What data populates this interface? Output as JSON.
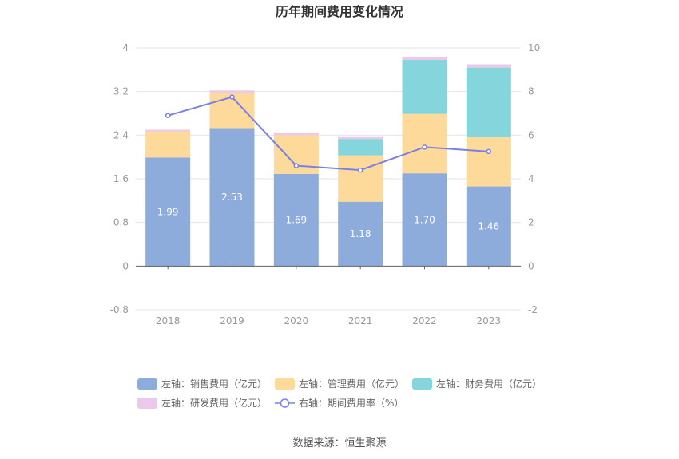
{
  "chart_data": {
    "type": "bar",
    "title": "历年期间费用变化情况",
    "categories": [
      "2018",
      "2019",
      "2020",
      "2021",
      "2022",
      "2023"
    ],
    "left_axis": {
      "ylim": [
        -0.8,
        4
      ],
      "ticks": [
        "4",
        "3.2",
        "2.4",
        "1.6",
        "0.8",
        "0",
        "-0.8"
      ]
    },
    "right_axis": {
      "ylim": [
        -2,
        10
      ],
      "ticks": [
        "10",
        "8",
        "6",
        "4",
        "2",
        "0",
        "-2"
      ]
    },
    "series": [
      {
        "name": "左轴：销售费用（亿元）",
        "type": "bar",
        "stack": true,
        "color": "#8eacdb",
        "values": [
          1.99,
          2.53,
          1.69,
          1.18,
          1.7,
          1.46
        ],
        "labels": [
          "1.99",
          "2.53",
          "1.69",
          "1.18",
          "1.70",
          "1.46"
        ]
      },
      {
        "name": "左轴：管理费用（亿元）",
        "type": "bar",
        "stack": true,
        "color": "#fdd99a",
        "values": [
          0.48,
          0.65,
          0.71,
          0.85,
          1.09,
          0.9
        ]
      },
      {
        "name": "左轴：财务费用（亿元）",
        "type": "bar",
        "stack": true,
        "color": "#85d6dc",
        "values": [
          -0.02,
          -0.01,
          -0.01,
          0.3,
          0.99,
          1.28
        ]
      },
      {
        "name": "左轴：研发费用（亿元）",
        "type": "bar",
        "stack": true,
        "color": "#eacae8",
        "values": [
          0.03,
          0.04,
          0.05,
          0.05,
          0.06,
          0.06
        ]
      },
      {
        "name": "右轴：期间费用率（%）",
        "type": "line",
        "axis": "right",
        "color": "#7b7fe8",
        "values": [
          6.9,
          7.75,
          4.6,
          4.4,
          5.45,
          5.25
        ]
      }
    ],
    "legend_position": "bottom",
    "grid": true
  },
  "source": "数据来源：恒生聚源"
}
